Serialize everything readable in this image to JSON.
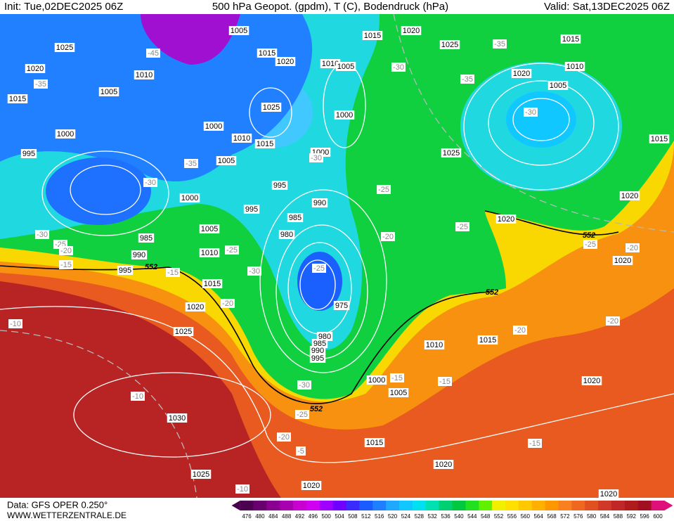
{
  "header": {
    "init": "Init: Tue,02DEC2025 06Z",
    "title": "500 hPa Geopot. (gpdm), T (C), Bodendruck (hPa)",
    "valid": "Valid: Sat,13DEC2025 06Z"
  },
  "footer": {
    "source": "Data: GFS OPER 0.250°",
    "site": "WWW.WETTERZENTRALE.DE"
  },
  "colorbar": {
    "levels": [
      476,
      480,
      484,
      488,
      492,
      496,
      500,
      504,
      508,
      512,
      516,
      520,
      524,
      528,
      532,
      536,
      540,
      544,
      548,
      552,
      556,
      560,
      564,
      568,
      572,
      576,
      580,
      584,
      588,
      592,
      596,
      600
    ],
    "colors": [
      "#4b0050",
      "#6a0070",
      "#8a0090",
      "#a800b0",
      "#c800d0",
      "#d000f0",
      "#a000ff",
      "#7000ff",
      "#3a2cff",
      "#1a5cff",
      "#1e80ff",
      "#20a8ff",
      "#10c8ff",
      "#00e0f0",
      "#00e0b0",
      "#00d070",
      "#00c840",
      "#20e020",
      "#60f000",
      "#f0f000",
      "#ffe000",
      "#ffc800",
      "#ffb000",
      "#ff9800",
      "#f88020",
      "#f06820",
      "#e05020",
      "#d03828",
      "#c02828",
      "#b01c1c",
      "#a01020",
      "#e0107a"
    ]
  },
  "pressure_labels": [
    1005,
    1015,
    1020,
    1025,
    1025,
    1015,
    1020,
    1015,
    1020,
    1010,
    1005,
    1010,
    1020,
    1005,
    1010,
    1005,
    1015,
    1025,
    1000,
    1000,
    1000,
    1010,
    1015,
    1015,
    995,
    1000,
    1025,
    1005,
    995,
    1000,
    1020,
    990,
    995,
    985,
    1020,
    1005,
    980,
    985,
    990,
    1010,
    1020,
    995,
    1015,
    975,
    1020,
    1025,
    980,
    985,
    990,
    995,
    1010,
    1015,
    1000,
    1005,
    1020,
    1030,
    1015,
    1020,
    1025,
    1020,
    1020
  ],
  "temperature_labels": [
    -45,
    -35,
    -30,
    -35,
    -35,
    -30,
    -35,
    -30,
    -30,
    -25,
    -25,
    -20,
    -30,
    -25,
    -20,
    -15,
    -25,
    -30,
    -15,
    -25,
    -20,
    -25,
    -20,
    -10,
    -20,
    -20,
    -15,
    -15,
    -30,
    -10,
    -25,
    -20,
    -5,
    -15,
    -10
  ],
  "height_labels": [
    552,
    552,
    552,
    552
  ]
}
